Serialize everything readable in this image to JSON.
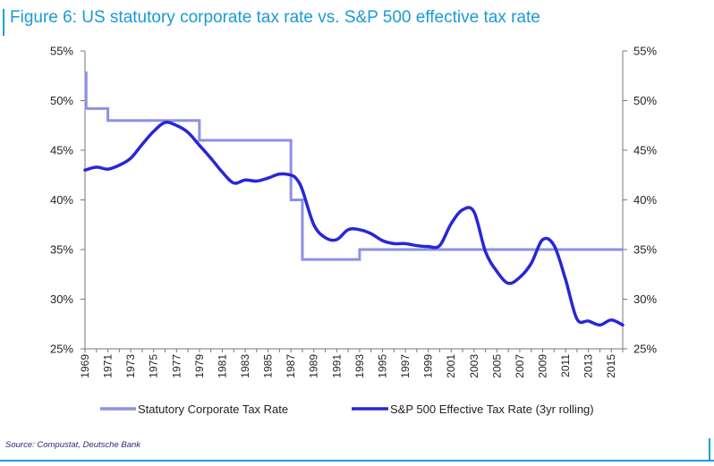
{
  "title": "Figure 6: US statutory corporate tax rate vs. S&P 500 effective tax rate",
  "source": "Source: Compustat, Deutsche Bank",
  "colors": {
    "accent": "#1aa0d8",
    "statutory": "#8b91e6",
    "effective": "#2727d6"
  },
  "chart_data": {
    "type": "line",
    "title": "Figure 6: US statutory corporate tax rate vs. S&P 500 effective tax rate",
    "xlabel": "",
    "ylabel": "",
    "xlim": [
      1969,
      2016
    ],
    "ylim": [
      25,
      55
    ],
    "y_ticks": [
      "55%",
      "50%",
      "45%",
      "40%",
      "35%",
      "30%",
      "25%"
    ],
    "y_tick_values": [
      55,
      50,
      45,
      40,
      35,
      30,
      25
    ],
    "x_ticks": [
      "1969",
      "1971",
      "1973",
      "1975",
      "1977",
      "1979",
      "1981",
      "1983",
      "1985",
      "1987",
      "1989",
      "1991",
      "1993",
      "1995",
      "1997",
      "1999",
      "2001",
      "2003",
      "2005",
      "2007",
      "2009",
      "2011",
      "2013",
      "2015"
    ],
    "grid": false,
    "dual_axis": true,
    "legend_position": "bottom",
    "series": [
      {
        "name": "Statutory Corporate Tax Rate",
        "step": true,
        "x": [
          1969,
          1969.1,
          1970,
          1971,
          1979,
          1987,
          1987.6,
          1988,
          1993,
          2016
        ],
        "y": [
          52.8,
          49.2,
          49.2,
          48,
          46,
          40,
          40,
          34,
          35,
          35
        ]
      },
      {
        "name": "S&P 500 Effective Tax Rate (3yr rolling)",
        "x": [
          1969,
          1970,
          1971,
          1972,
          1973,
          1974,
          1975,
          1976,
          1977,
          1978,
          1979,
          1980,
          1981,
          1982,
          1983,
          1984,
          1985,
          1986,
          1987,
          1987.5,
          1988,
          1989,
          1990,
          1991,
          1992,
          1993,
          1994,
          1995,
          1996,
          1997,
          1998,
          1999,
          2000,
          2001,
          2002,
          2003,
          2004,
          2005,
          2006,
          2007,
          2008,
          2009,
          2010,
          2011,
          2012,
          2013,
          2014,
          2015,
          2016
        ],
        "y": [
          43.0,
          43.3,
          43.1,
          43.5,
          44.2,
          45.6,
          46.9,
          47.8,
          47.5,
          46.8,
          45.5,
          44.2,
          42.8,
          41.7,
          42.0,
          41.9,
          42.2,
          42.6,
          42.5,
          42.1,
          41.0,
          37.5,
          36.2,
          36.0,
          37.0,
          37.0,
          36.6,
          35.9,
          35.6,
          35.6,
          35.4,
          35.3,
          35.4,
          37.6,
          39.0,
          38.8,
          34.8,
          32.8,
          31.6,
          32.2,
          33.6,
          36.0,
          35.4,
          32.0,
          28.0,
          27.8,
          27.4,
          27.9,
          27.4
        ]
      }
    ]
  }
}
